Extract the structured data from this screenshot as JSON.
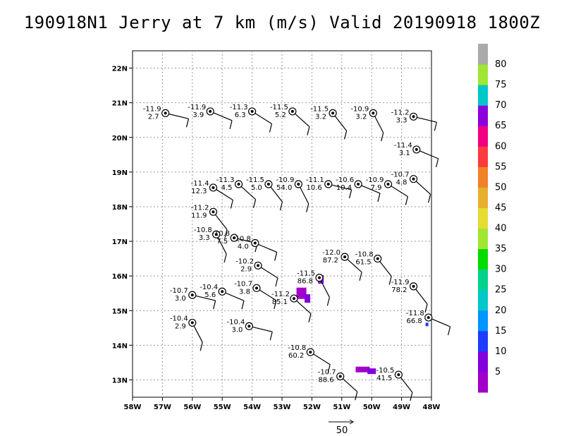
{
  "chart_data": {
    "type": "scatter",
    "title": "190918N1 Jerry at 7 km (m/s) Valid 20190918 1800Z",
    "x_ticks": [
      "58W",
      "57W",
      "56W",
      "55W",
      "54W",
      "53W",
      "52W",
      "51W",
      "50W",
      "49W",
      "48W"
    ],
    "y_ticks": [
      "13N",
      "14N",
      "15N",
      "16N",
      "17N",
      "18N",
      "19N",
      "20N",
      "21N",
      "22N"
    ],
    "xlim": [
      -58,
      -48
    ],
    "ylim": [
      12.5,
      22.5
    ],
    "grid": true,
    "colorbar": {
      "labels": [
        "5",
        "10",
        "15",
        "20",
        "25",
        "30",
        "35",
        "40",
        "45",
        "50",
        "55",
        "60",
        "65",
        "70",
        "75",
        "80"
      ],
      "colors": [
        "#a000c8",
        "#8200dc",
        "#1e3cff",
        "#0096ff",
        "#00c8c8",
        "#00d28c",
        "#00dc00",
        "#a0e632",
        "#e6dc32",
        "#e6af2d",
        "#f08228",
        "#fa3c3c",
        "#f00082",
        "#8c00dc",
        "#00c8c8",
        "#a0e632",
        "#aaaaaa"
      ]
    },
    "stations": [
      {
        "lon": -56.9,
        "lat": 20.7,
        "t": "-11.9",
        "w": "2.7"
      },
      {
        "lon": -55.4,
        "lat": 20.75,
        "t": "-11.9",
        "w": "3.9"
      },
      {
        "lon": -54.0,
        "lat": 20.75,
        "t": "-11.3",
        "w": "6.3"
      },
      {
        "lon": -52.65,
        "lat": 20.75,
        "t": "-11.5",
        "w": "5.2"
      },
      {
        "lon": -51.3,
        "lat": 20.7,
        "t": "-11.5",
        "w": "3.2"
      },
      {
        "lon": -49.95,
        "lat": 20.7,
        "t": "-10.9",
        "w": "3.2"
      },
      {
        "lon": -48.6,
        "lat": 20.6,
        "t": "-11.2",
        "w": "3.3"
      },
      {
        "lon": -48.5,
        "lat": 19.65,
        "t": "-11.4",
        "w": "3.1"
      },
      {
        "lon": -55.3,
        "lat": 18.55,
        "t": "-11.4",
        "w": "12.3"
      },
      {
        "lon": -54.45,
        "lat": 18.65,
        "t": "-11.3",
        "w": "4.5"
      },
      {
        "lon": -53.45,
        "lat": 18.65,
        "t": "-11.5",
        "w": "5.0"
      },
      {
        "lon": -52.45,
        "lat": 18.65,
        "t": "-10.9",
        "w": "54.0"
      },
      {
        "lon": -51.45,
        "lat": 18.65,
        "t": "-11.1",
        "w": "10.6"
      },
      {
        "lon": -50.45,
        "lat": 18.65,
        "t": "-10.6",
        "w": "10.4"
      },
      {
        "lon": -49.45,
        "lat": 18.65,
        "t": "-10.9",
        "w": "7.9"
      },
      {
        "lon": -48.6,
        "lat": 18.8,
        "t": "-10.7",
        "w": "4.8"
      },
      {
        "lon": -55.3,
        "lat": 17.85,
        "t": "-11.2",
        "w": "11.9"
      },
      {
        "lon": -55.2,
        "lat": 17.2,
        "t": "-10.8",
        "w": "3.3"
      },
      {
        "lon": -54.6,
        "lat": 17.1,
        "t": "-10.8",
        "w": "7.5"
      },
      {
        "lon": -53.9,
        "lat": 16.95,
        "t": "-10.8",
        "w": "4.0"
      },
      {
        "lon": -53.8,
        "lat": 16.3,
        "t": "-10.2",
        "w": "2.9"
      },
      {
        "lon": -50.9,
        "lat": 16.55,
        "t": "-12.0",
        "w": "87.2"
      },
      {
        "lon": -49.8,
        "lat": 16.5,
        "t": "-10.8",
        "w": "61.5"
      },
      {
        "lon": -51.75,
        "lat": 15.95,
        "t": "-11.5",
        "w": "86.8"
      },
      {
        "lon": -56.0,
        "lat": 15.45,
        "t": "-10.7",
        "w": "3.0"
      },
      {
        "lon": -55.0,
        "lat": 15.55,
        "t": "-10.4",
        "w": "5.6"
      },
      {
        "lon": -53.85,
        "lat": 15.65,
        "t": "-10.7",
        "w": "3.8"
      },
      {
        "lon": -52.6,
        "lat": 15.35,
        "t": "-11.2",
        "w": "85.1"
      },
      {
        "lon": -48.6,
        "lat": 15.7,
        "t": "-11.9",
        "w": "78.2"
      },
      {
        "lon": -56.0,
        "lat": 14.65,
        "t": "-10.4",
        "w": "2.9"
      },
      {
        "lon": -54.1,
        "lat": 14.55,
        "t": "-10.4",
        "w": "3.0"
      },
      {
        "lon": -48.1,
        "lat": 14.8,
        "t": "-11.8",
        "w": "66.8"
      },
      {
        "lon": -52.05,
        "lat": 13.8,
        "t": "-10.8",
        "w": "60.2"
      },
      {
        "lon": -51.05,
        "lat": 13.1,
        "t": "-10.7",
        "w": "88.6"
      },
      {
        "lon": -49.1,
        "lat": 13.15,
        "t": "-10.5",
        "w": "41.5"
      }
    ],
    "legend_vector": {
      "label": "50"
    }
  }
}
